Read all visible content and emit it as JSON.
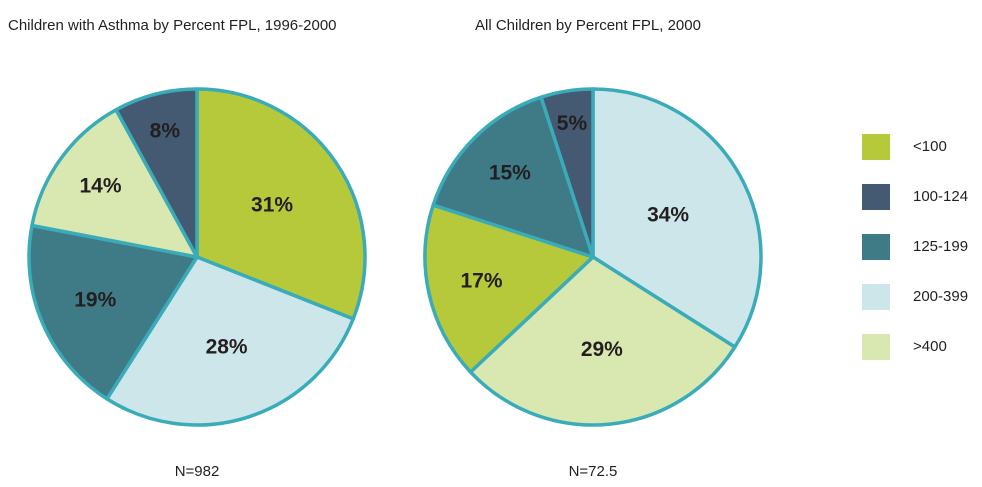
{
  "chart_data": [
    {
      "type": "pie",
      "title": "Children with Asthma by Percent FPL, 1996-2000",
      "note": "N=982",
      "values": [
        31,
        28,
        19,
        14,
        8
      ],
      "value_labels": [
        "31%",
        "28%",
        "19%",
        "14%",
        "8%"
      ],
      "colors": [
        "#b5c93a",
        "#cde6ea",
        "#3f7b86",
        "#d9e8b0",
        "#435a72"
      ]
    },
    {
      "type": "pie",
      "title": "All Children by Percent FPL, 2000",
      "note": "N=72.5",
      "values": [
        34,
        29,
        17,
        15,
        5
      ],
      "value_labels": [
        "34%",
        "29%",
        "17%",
        "15%",
        "5%"
      ],
      "colors": [
        "#cde6ea",
        "#d9e8b0",
        "#b5c93a",
        "#3f7b86",
        "#435a72"
      ]
    }
  ],
  "legend": {
    "labels": [
      "<100",
      "100-124",
      "125-199",
      "200-399",
      ">400"
    ],
    "colors": [
      "#b5c93a",
      "#435a72",
      "#3f7b86",
      "#cde6ea",
      "#d9e8b0"
    ]
  },
  "slice_border": "#3aabb9"
}
